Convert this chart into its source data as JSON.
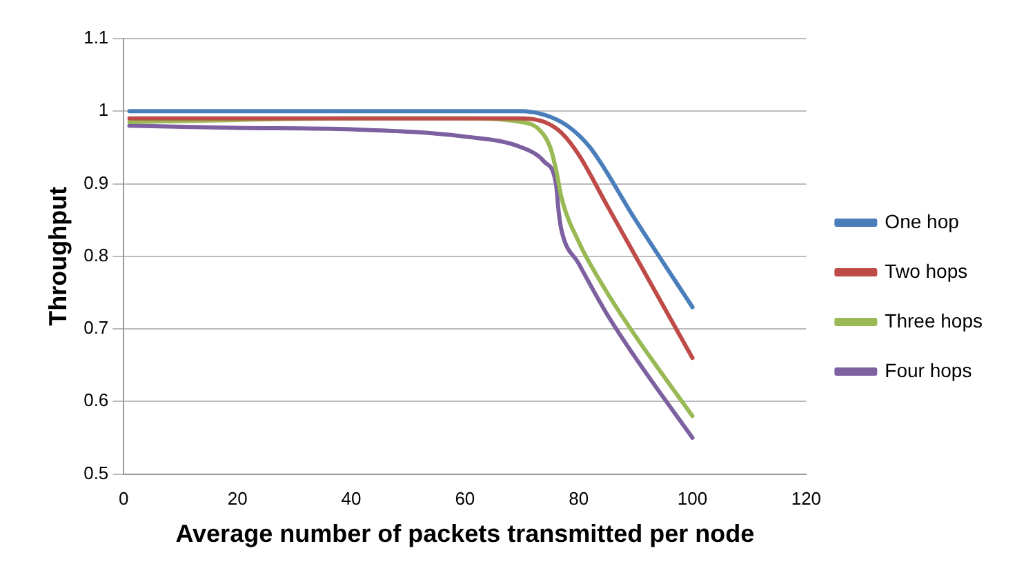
{
  "chart_data": {
    "type": "line",
    "xlabel": "Average number of packets transmitted per node",
    "ylabel": "Throughput",
    "xlim": [
      0,
      120
    ],
    "xticks": [
      0,
      20,
      40,
      60,
      80,
      100,
      120
    ],
    "ylim": [
      0.5,
      1.1
    ],
    "yticks": [
      0.5,
      0.6,
      0.7,
      0.8,
      0.9,
      1,
      1.1
    ],
    "grid": "y",
    "legend": "right",
    "marker": "none",
    "series": [
      {
        "name": "One hop",
        "color": "#4a7ebb",
        "x": [
          1,
          20,
          40,
          60,
          70,
          74,
          78,
          82,
          90,
          100
        ],
        "values": [
          1,
          1,
          1,
          1,
          1,
          0.995,
          0.98,
          0.95,
          0.85,
          0.73
        ]
      },
      {
        "name": "Two hops",
        "color": "#be4b48",
        "x": [
          1,
          20,
          40,
          60,
          70,
          74,
          77,
          80,
          85,
          90,
          100
        ],
        "values": [
          0.99,
          0.99,
          0.99,
          0.99,
          0.99,
          0.985,
          0.97,
          0.94,
          0.87,
          0.8,
          0.66
        ]
      },
      {
        "name": "Three hops",
        "color": "#98b954",
        "x": [
          1,
          20,
          40,
          60,
          70,
          73,
          75,
          76,
          77,
          80,
          85,
          90,
          100
        ],
        "values": [
          0.985,
          0.988,
          0.99,
          0.99,
          0.985,
          0.975,
          0.95,
          0.92,
          0.88,
          0.82,
          0.75,
          0.69,
          0.58
        ]
      },
      {
        "name": "Four hops",
        "color": "#7d60a0",
        "x": [
          1,
          20,
          40,
          60,
          70,
          74,
          76,
          76.5,
          77,
          80,
          85,
          90,
          100
        ],
        "values": [
          0.98,
          0.977,
          0.975,
          0.965,
          0.95,
          0.93,
          0.9,
          0.86,
          0.835,
          0.79,
          0.72,
          0.66,
          0.55
        ]
      }
    ]
  }
}
